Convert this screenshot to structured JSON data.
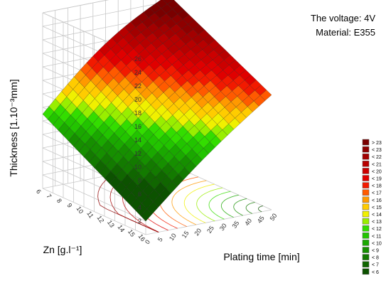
{
  "notes": {
    "voltage": "The voltage: 4V",
    "material": "Material: E355"
  },
  "chart_data": {
    "type": "surface-3d",
    "zlabel": "Thickness [1.10⁻³mm]",
    "xlabel": "Plating time [min]",
    "ylabel": "Zn [g.l⁻¹]",
    "x_ticks": [
      "0",
      "5",
      "10",
      "15",
      "20",
      "25",
      "30",
      "35",
      "40",
      "45",
      "50"
    ],
    "y_ticks": [
      "6",
      "7",
      "8",
      "9",
      "10",
      "11",
      "12",
      "13",
      "14",
      "15",
      "16"
    ],
    "z_ticks": [
      "2",
      "4",
      "6",
      "8",
      "10",
      "12",
      "14",
      "16",
      "18",
      "20",
      "22",
      "24",
      "26"
    ],
    "xlim": [
      0,
      50
    ],
    "ylim": [
      6,
      16
    ],
    "zlim": [
      0,
      26
    ],
    "surface_corners": [
      {
        "time": 0,
        "zn": 16,
        "thickness": 11
      },
      {
        "time": 0,
        "zn": 6,
        "thickness": 2
      },
      {
        "time": 50,
        "zn": 6,
        "thickness": 17
      },
      {
        "time": 50,
        "zn": 16,
        "thickness": 25
      }
    ],
    "legend": [
      {
        "label": "> 23",
        "color": "#7a0000"
      },
      {
        "label": "< 23",
        "color": "#8e0000"
      },
      {
        "label": "< 22",
        "color": "#a30000"
      },
      {
        "label": "< 21",
        "color": "#b80000"
      },
      {
        "label": "< 20",
        "color": "#cc0000"
      },
      {
        "label": "< 19",
        "color": "#e00000"
      },
      {
        "label": "< 18",
        "color": "#f21a00"
      },
      {
        "label": "< 17",
        "color": "#ff5a00"
      },
      {
        "label": "< 16",
        "color": "#ff9900"
      },
      {
        "label": "< 15",
        "color": "#ffcc00"
      },
      {
        "label": "< 14",
        "color": "#f0f000"
      },
      {
        "label": "< 13",
        "color": "#99ee00"
      },
      {
        "label": "< 12",
        "color": "#33dd00"
      },
      {
        "label": "< 11",
        "color": "#22c400"
      },
      {
        "label": "< 10",
        "color": "#1aa800"
      },
      {
        "label": "< 9",
        "color": "#168f00"
      },
      {
        "label": "< 8",
        "color": "#137a00"
      },
      {
        "label": "< 7",
        "color": "#106600"
      },
      {
        "label": "< 6",
        "color": "#0c5200"
      }
    ]
  }
}
